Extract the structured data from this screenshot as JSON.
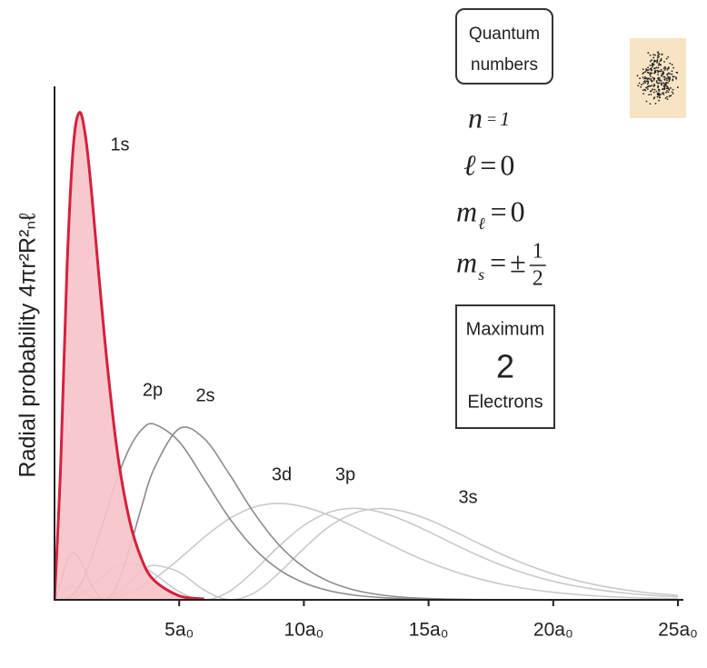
{
  "chart_data": {
    "type": "line",
    "y_label": "Radial probability 4πr²R²ₙℓ",
    "x": [
      0,
      0.25,
      0.5,
      0.75,
      1,
      1.25,
      1.5,
      2,
      2.5,
      3,
      3.5,
      4,
      5,
      6,
      7,
      8,
      9,
      10,
      11,
      12,
      13,
      14,
      15,
      16,
      17,
      18,
      19,
      20,
      21,
      22,
      23,
      24,
      25
    ],
    "xlim": [
      0,
      25
    ],
    "ylim": [
      0,
      0.57
    ],
    "xticks": [
      {
        "value": 5,
        "label": "5a₀"
      },
      {
        "value": 10,
        "label": "10a₀"
      },
      {
        "value": 15,
        "label": "15a₀"
      },
      {
        "value": 20,
        "label": "20a₀"
      },
      {
        "value": 25,
        "label": "25a₀"
      }
    ],
    "series": [
      {
        "name": "1s",
        "color": "#d5203f",
        "fill": "#f6c3c8",
        "values": [
          0,
          0.152,
          0.368,
          0.502,
          0.541,
          0.513,
          0.448,
          0.293,
          0.168,
          0.0892,
          0.0447,
          0.0215,
          0.0045,
          0.0009,
          null,
          null,
          null,
          null,
          null,
          null,
          null,
          null,
          null,
          null,
          null,
          null,
          null,
          null,
          null,
          null,
          null,
          null,
          null
        ]
      },
      {
        "name": "2s",
        "color": "#8c8c8c",
        "values": [
          0,
          0.0186,
          0.0426,
          0.0519,
          0.046,
          0.0315,
          0.0157,
          0,
          0.016,
          0.056,
          0.104,
          0.146,
          0.19,
          0.179,
          0.14,
          0.0965,
          0.061,
          0.0363,
          0.0205,
          0.0111,
          0.0058,
          0.0029,
          0.0015,
          0.0007,
          0.0003,
          0.0002,
          0.0001,
          0,
          0,
          0,
          0,
          0,
          0
        ]
      },
      {
        "name": "2p",
        "color": "#8c8c8c",
        "values": [
          0,
          0.0001,
          0.0016,
          0.0062,
          0.0153,
          0.0291,
          0.0471,
          0.0902,
          0.1336,
          0.168,
          0.189,
          0.195,
          0.1755,
          0.134,
          0.0912,
          0.0572,
          0.0336,
          0.0189,
          0.0102,
          0.0053,
          0.0027,
          0.0013,
          0.0007,
          0.0003,
          0.0001,
          0.0001,
          0,
          0,
          0,
          0,
          0,
          0,
          0
        ]
      },
      {
        "name": "3s",
        "color": "#c9c9c9",
        "values": [
          0,
          0.0055,
          0.0125,
          0.0148,
          0.0126,
          0.008,
          0.0034,
          0.0002,
          0.0073,
          0.02,
          0.0319,
          0.0382,
          0.0307,
          0.0108,
          0.0001,
          0.0076,
          0.0298,
          0.057,
          0.081,
          0.096,
          0.1014,
          0.0982,
          0.089,
          0.0764,
          0.0628,
          0.0498,
          0.0383,
          0.0287,
          0.021,
          0.0151,
          0.0106,
          0.0073,
          0.005
        ]
      },
      {
        "name": "3p",
        "color": "#c9c9c9",
        "values": [
          0,
          0,
          0.0006,
          0.0022,
          0.0052,
          0.0097,
          0.0153,
          0.0274,
          0.0367,
          0.0401,
          0.037,
          0.0289,
          0.0091,
          0,
          0.0092,
          0.0322,
          0.0595,
          0.0826,
          0.0971,
          0.1016,
          0.0978,
          0.0883,
          0.0757,
          0.0621,
          0.0492,
          0.0377,
          0.0282,
          0.0206,
          0.0148,
          0.0104,
          0.0072,
          0.0049,
          0.0033
        ]
      },
      {
        "name": "3d",
        "color": "#c9c9c9",
        "values": [
          0,
          0,
          0,
          0,
          0,
          0.0001,
          0.0003,
          0.0014,
          0.0038,
          0.008,
          0.0145,
          0.0231,
          0.0453,
          0.0694,
          0.0899,
          0.1029,
          0.1071,
          0.1032,
          0.094,
          0.0813,
          0.0675,
          0.0541,
          0.042,
          0.0318,
          0.0235,
          0.017,
          0.012,
          0.0084,
          0.0058,
          0.0039,
          0.0026,
          0.0017,
          0.0011
        ]
      }
    ],
    "annotations": {
      "quantum_box": [
        "Quantum",
        "numbers"
      ],
      "quantum_numbers": [
        {
          "symbol": "n",
          "relation": "=",
          "value": "1"
        },
        {
          "symbol": "ℓ",
          "relation": "=",
          "value": "0"
        },
        {
          "symbol": "m",
          "subscript": "ℓ",
          "relation": "=",
          "value": "0"
        },
        {
          "symbol": "m",
          "subscript": "s",
          "relation": "=",
          "sign": "±",
          "numerator": "1",
          "denominator": "2"
        }
      ],
      "max_box": [
        "Maximum",
        "2",
        "Electrons"
      ]
    }
  }
}
